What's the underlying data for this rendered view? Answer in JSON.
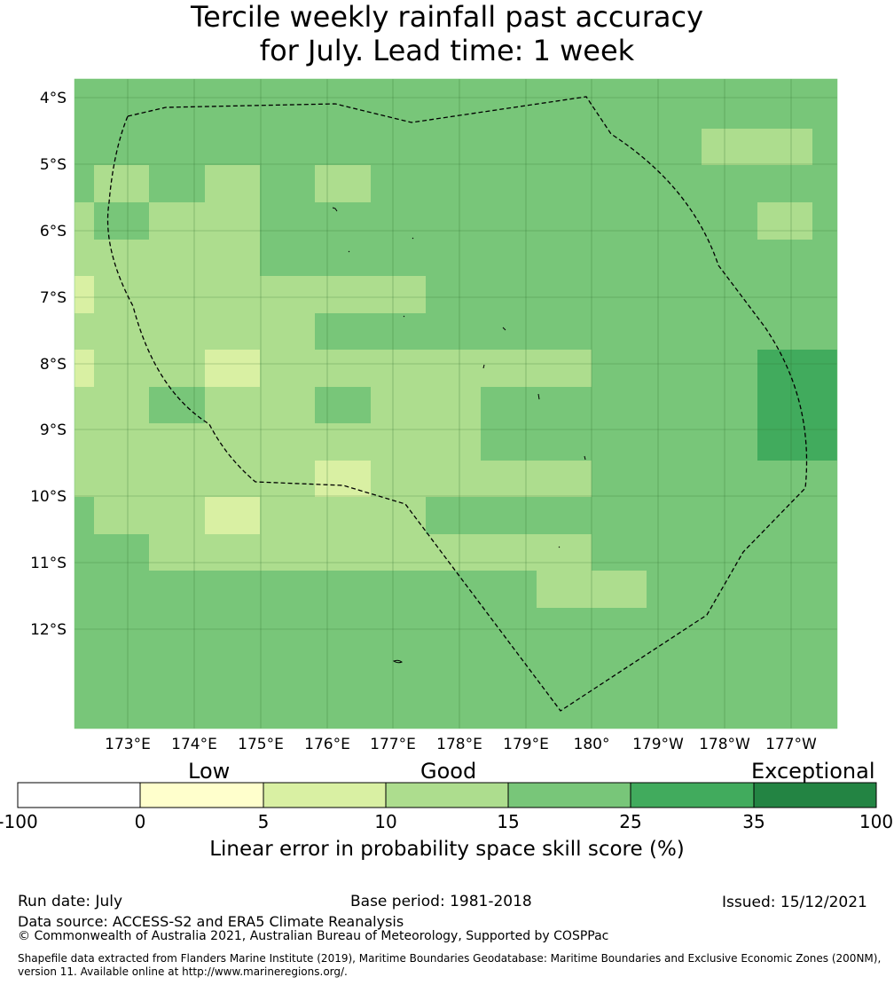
{
  "title": {
    "line1": "Tercile weekly rainfall past accuracy",
    "line2": "for July. Lead time: 1 week"
  },
  "map": {
    "lon_ticks": [
      "173°E",
      "174°E",
      "175°E",
      "176°E",
      "177°E",
      "178°E",
      "179°E",
      "180°",
      "179°W",
      "178°W",
      "177°W"
    ],
    "lat_ticks": [
      "4°S",
      "5°S",
      "6°S",
      "7°S",
      "8°S",
      "9°S",
      "10°S",
      "11°S",
      "12°S"
    ],
    "boundary_style": "dashed",
    "colors": {
      "c0": "#ffffcc",
      "c5": "#d9f0a3",
      "c10": "#addd8e",
      "c15": "#78c679",
      "c25": "#41ab5d",
      "c35": "#238443"
    }
  },
  "colorbar": {
    "categories": {
      "low": "Low",
      "good": "Good",
      "exceptional": "Exceptional"
    },
    "ticks": [
      "-100",
      "0",
      "5",
      "10",
      "15",
      "25",
      "35",
      "100"
    ],
    "colors": [
      "#ffffff",
      "#ffffcc",
      "#d9f0a3",
      "#addd8e",
      "#78c679",
      "#41ab5d",
      "#238443"
    ],
    "label": "Linear error in probability space skill score (%)"
  },
  "footer": {
    "run_date": "Run date: July",
    "base_period": "Base period: 1981-2018",
    "issued": "Issued: 15/12/2021",
    "data_source": "Data source: ACCESS-S2 and ERA5 Climate Reanalysis",
    "copyright": "© Commonwealth of Australia 2021, Australian Bureau of Meteorology, Supported by COSPPac",
    "shapefile": "Shapefile data extracted from Flanders Marine Institute (2019), Maritime Boundaries Geodatabase: Maritime Boundaries and Exclusive Economic Zones (200NM), version 11. Available online at http://www.marineregions.org/."
  }
}
